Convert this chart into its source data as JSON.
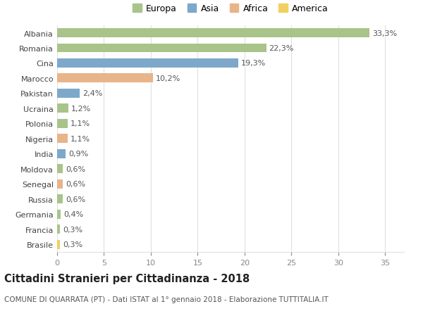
{
  "countries": [
    "Albania",
    "Romania",
    "Cina",
    "Marocco",
    "Pakistan",
    "Ucraina",
    "Polonia",
    "Nigeria",
    "India",
    "Moldova",
    "Senegal",
    "Russia",
    "Germania",
    "Francia",
    "Brasile"
  ],
  "values": [
    33.3,
    22.3,
    19.3,
    10.2,
    2.4,
    1.2,
    1.1,
    1.1,
    0.9,
    0.6,
    0.6,
    0.6,
    0.4,
    0.3,
    0.3
  ],
  "labels": [
    "33,3%",
    "22,3%",
    "19,3%",
    "10,2%",
    "2,4%",
    "1,2%",
    "1,1%",
    "1,1%",
    "0,9%",
    "0,6%",
    "0,6%",
    "0,6%",
    "0,4%",
    "0,3%",
    "0,3%"
  ],
  "continents": [
    "Europa",
    "Europa",
    "Asia",
    "Africa",
    "Asia",
    "Europa",
    "Europa",
    "Africa",
    "Asia",
    "Europa",
    "Africa",
    "Europa",
    "Europa",
    "Europa",
    "America"
  ],
  "colors": {
    "Europa": "#a8c48a",
    "Asia": "#7ea8c9",
    "Africa": "#e8b48a",
    "America": "#f0d060"
  },
  "legend_order": [
    "Europa",
    "Asia",
    "Africa",
    "America"
  ],
  "xlim": [
    0,
    37
  ],
  "xticks": [
    0,
    5,
    10,
    15,
    20,
    25,
    30,
    35
  ],
  "title": "Cittadini Stranieri per Cittadinanza - 2018",
  "subtitle": "COMUNE DI QUARRATA (PT) - Dati ISTAT al 1° gennaio 2018 - Elaborazione TUTTITALIA.IT",
  "bg_color": "#ffffff",
  "grid_color": "#e0e0e0",
  "bar_height": 0.6,
  "label_fontsize": 8,
  "tick_fontsize": 8,
  "title_fontsize": 10.5,
  "subtitle_fontsize": 7.5
}
